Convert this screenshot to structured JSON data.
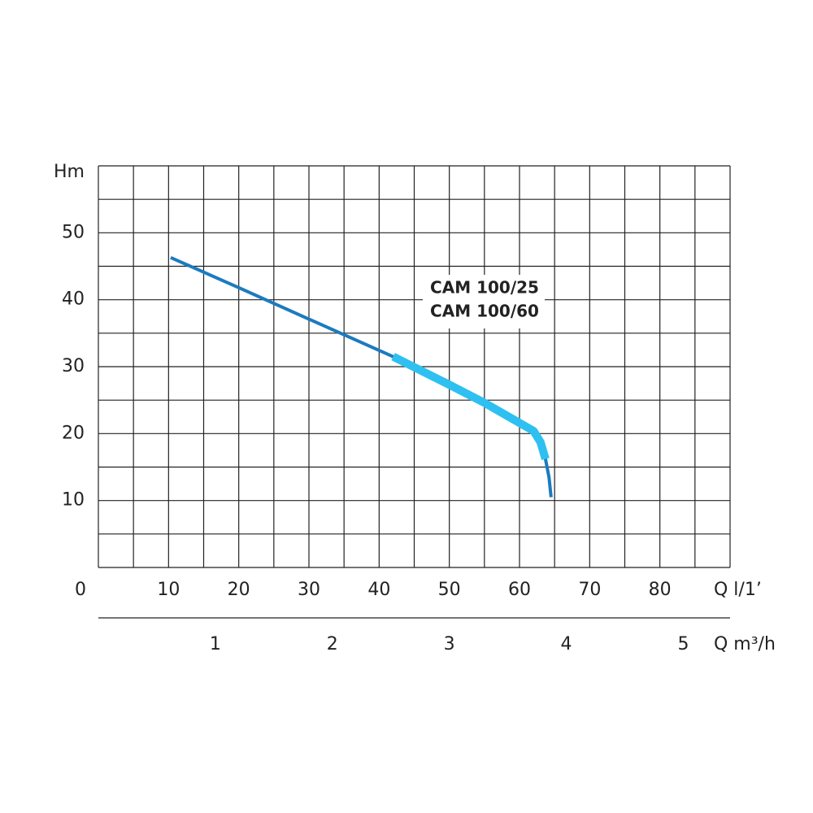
{
  "chart_data": {
    "type": "line",
    "y_label": "Hm",
    "x_label": "Q l/1’",
    "x2_label": "Q m³/h",
    "annotation": [
      "CAM 100/25",
      "CAM 100/60"
    ],
    "xlim": [
      0,
      90
    ],
    "ylim": [
      0,
      60
    ],
    "xticks": [
      0,
      10,
      20,
      30,
      40,
      50,
      60,
      70,
      80
    ],
    "yticks": [
      10,
      20,
      30,
      40,
      50
    ],
    "xgrid": [
      0,
      5,
      10,
      15,
      20,
      25,
      30,
      35,
      40,
      45,
      50,
      55,
      60,
      65,
      70,
      75,
      80,
      85,
      90
    ],
    "ygrid": [
      0,
      5,
      10,
      15,
      20,
      25,
      30,
      35,
      40,
      45,
      50,
      55,
      60
    ],
    "x2lim": [
      0,
      5.4
    ],
    "x2ticks": [
      1,
      2,
      3,
      4,
      5
    ],
    "series": [
      {
        "color": "#1b7bbf",
        "width": 4,
        "x": [
          10.3,
          20,
          30,
          42,
          50,
          55,
          60,
          62,
          63,
          63.7,
          64.2,
          64.5
        ],
        "values": [
          46.3,
          41.8,
          37.1,
          31.5,
          27.3,
          24.6,
          21.6,
          20.4,
          18.7,
          16.2,
          13.5,
          10.5
        ]
      },
      {
        "color": "#2ec0f0",
        "width": 10,
        "x": [
          42,
          50,
          55,
          60,
          62,
          63,
          63.7
        ],
        "values": [
          31.5,
          27.3,
          24.6,
          21.6,
          20.4,
          18.7,
          16.2
        ]
      }
    ]
  }
}
